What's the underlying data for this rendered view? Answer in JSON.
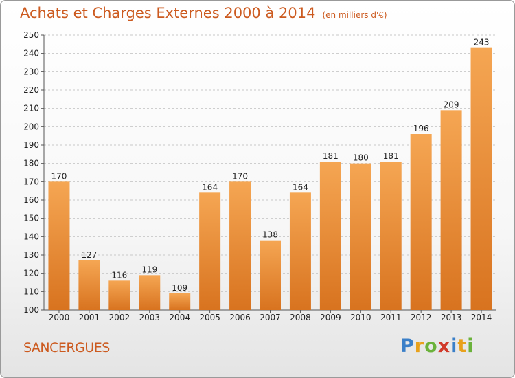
{
  "header": {
    "title": "Achats et Charges Externes 2000 à 2014",
    "subtitle": "(en milliers d'€)"
  },
  "commune": "SANCERGUES",
  "logo": {
    "text": "Proxiti",
    "letters": [
      {
        "char": "P",
        "color": "#3a7fc8"
      },
      {
        "char": "r",
        "color": "#e8a11c"
      },
      {
        "char": "o",
        "color": "#6bb23b"
      },
      {
        "char": "x",
        "color": "#d13a2a"
      },
      {
        "char": "i",
        "color": "#3a7fc8"
      },
      {
        "char": "t",
        "color": "#e8a11c"
      },
      {
        "char": "i",
        "color": "#6bb23b"
      }
    ]
  },
  "colors": {
    "accent": "#cc5a1f",
    "bar_light": "#f5a653",
    "bar_dark": "#d8731f",
    "grid": "#c8c8c8"
  },
  "chart_data": {
    "type": "bar",
    "title": "Achats et Charges Externes 2000 à 2014",
    "subtitle": "(en milliers d'€)",
    "categories": [
      "2000",
      "2001",
      "2002",
      "2003",
      "2004",
      "2005",
      "2006",
      "2007",
      "2008",
      "2009",
      "2010",
      "2011",
      "2012",
      "2013",
      "2014"
    ],
    "values": [
      170,
      127,
      116,
      119,
      109,
      164,
      170,
      138,
      164,
      181,
      180,
      181,
      196,
      209,
      243
    ],
    "ylim": [
      100,
      250
    ],
    "yticks": [
      100,
      110,
      120,
      130,
      140,
      150,
      160,
      170,
      180,
      190,
      200,
      210,
      220,
      230,
      240,
      250
    ],
    "grid": true,
    "xlabel": "",
    "ylabel": ""
  }
}
